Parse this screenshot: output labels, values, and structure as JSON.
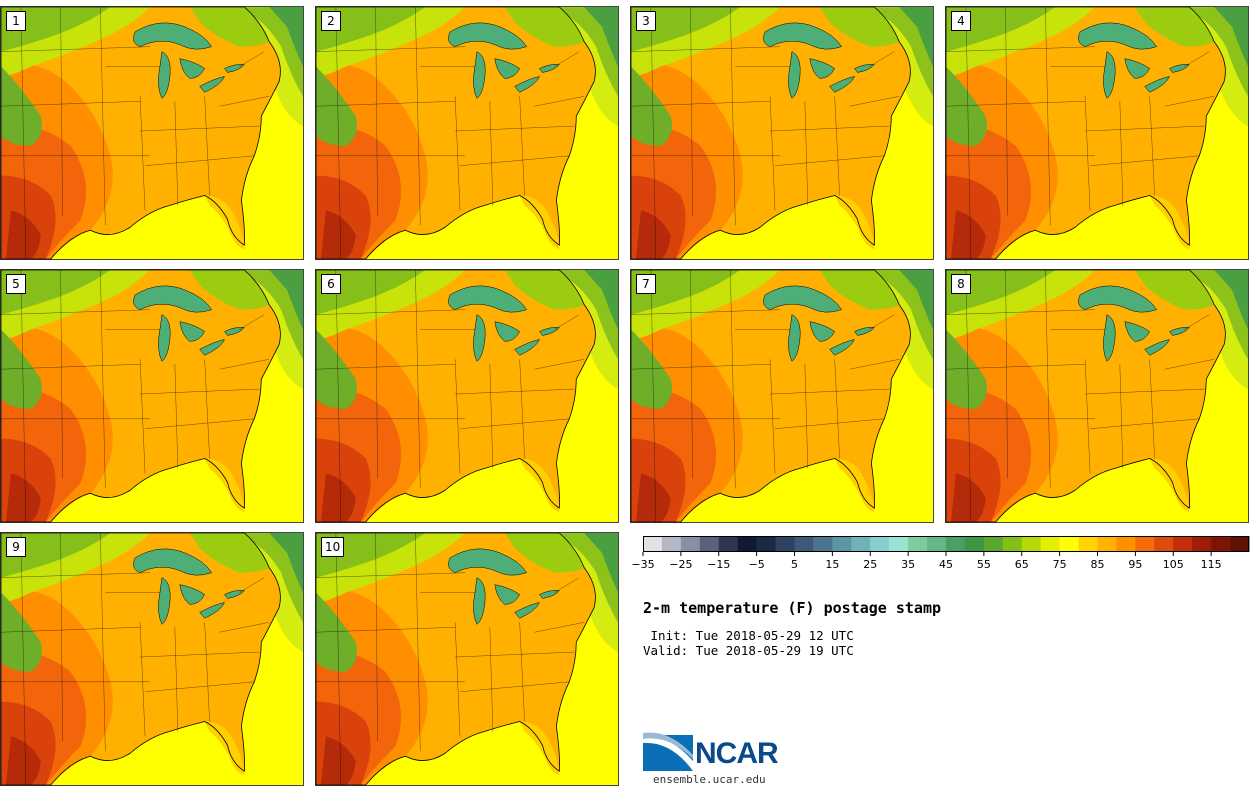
{
  "title": "2-m temperature (F) postage stamp",
  "init": " Init: Tue 2018-05-29 12 UTC",
  "valid": "Valid: Tue 2018-05-29 19 UTC",
  "logo": {
    "brand": "NCAR",
    "url": "ensemble.ucar.edu"
  },
  "panels": [
    {
      "label": "1"
    },
    {
      "label": "2"
    },
    {
      "label": "3"
    },
    {
      "label": "4"
    },
    {
      "label": "5"
    },
    {
      "label": "6"
    },
    {
      "label": "7"
    },
    {
      "label": "8"
    },
    {
      "label": "9"
    },
    {
      "label": "10"
    }
  ],
  "colorbar": {
    "units": "F",
    "min": -35,
    "max": 125,
    "step": 5,
    "tick_labels": [
      "-35",
      "-25",
      "-15",
      "-5",
      "5",
      "15",
      "25",
      "35",
      "45",
      "55",
      "65",
      "75",
      "85",
      "95",
      "105",
      "115"
    ],
    "colors": [
      "#e1e3e8",
      "#b5b7c8",
      "#8a8ea5",
      "#5a617a",
      "#2f3650",
      "#121a33",
      "#1b2945",
      "#2c4260",
      "#3c5a78",
      "#4d7590",
      "#5e95a6",
      "#72b3bb",
      "#88d0cd",
      "#9ae3d4",
      "#7ecb9f",
      "#64b683",
      "#4aa064",
      "#3e9544",
      "#5aa62e",
      "#84bf18",
      "#b4d90a",
      "#e3f002",
      "#ffff00",
      "#ffd200",
      "#ffb300",
      "#ff9000",
      "#f46b0a",
      "#e04a0a",
      "#c02f08",
      "#a01c08",
      "#7f1307",
      "#5f1106"
    ]
  },
  "legend": {
    "land": "#ff9f1a",
    "water_great_lakes": "#4eae78",
    "ocean_warm": "#ffff00"
  }
}
